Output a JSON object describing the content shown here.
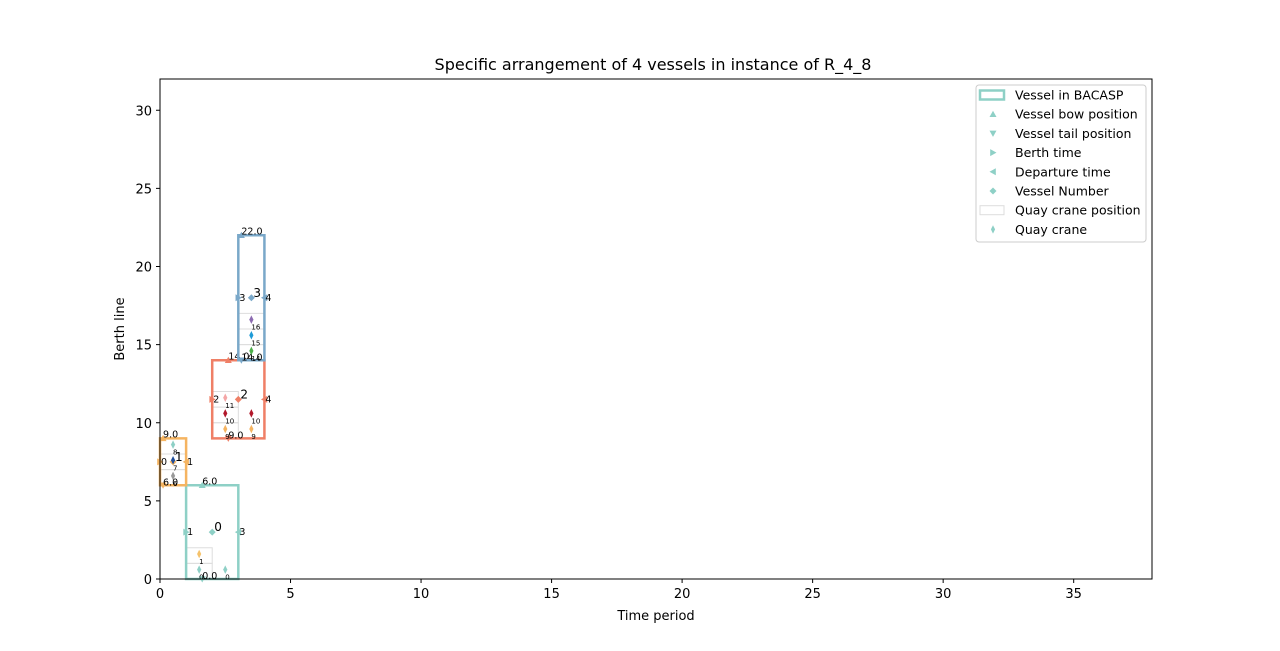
{
  "chart_data": {
    "type": "scatter",
    "title": "Specific arrangement of 4 vessels in instance of R_4_8",
    "xlabel": "Time period",
    "ylabel": "Berth line",
    "xlim": [
      0,
      38
    ],
    "ylim": [
      0,
      32
    ],
    "xticks": [
      "0",
      "5",
      "10",
      "15",
      "20",
      "25",
      "30",
      "35"
    ],
    "yticks": [
      "0",
      "5",
      "10",
      "15",
      "20",
      "25",
      "30"
    ],
    "grid": false,
    "legend_position": "top-right",
    "legend": [
      {
        "label": "Vessel in BACASP",
        "marker": "rect"
      },
      {
        "label": "Vessel bow position",
        "marker": "tri-up"
      },
      {
        "label": "Vessel tail position",
        "marker": "tri-down"
      },
      {
        "label": "Berth time",
        "marker": "tri-right"
      },
      {
        "label": "Departure time",
        "marker": "tri-left"
      },
      {
        "label": "Vessel Number",
        "marker": "diamond"
      },
      {
        "label": "Quay crane position",
        "marker": "crane-rect"
      },
      {
        "label": "Quay crane",
        "marker": "thin-diamond"
      }
    ],
    "legend_color": "#8ed0c6",
    "vessels": [
      {
        "id": "0",
        "berth_time": 1,
        "departure_time": 3,
        "tail": 0,
        "bow": 6,
        "color": "#8ed0c6",
        "tail_label": "0.0",
        "bow_label": "6.0",
        "berth_label": "1",
        "depart_label": "3",
        "crane_slots": [
          {
            "t": 1,
            "y0": 0,
            "y1": 1
          },
          {
            "t": 1,
            "y0": 1,
            "y1": 2
          }
        ],
        "cranes": [
          {
            "t": 1.5,
            "y": 0.6,
            "label": "0",
            "color": "#8ed0c6"
          },
          {
            "t": 1.5,
            "y": 1.6,
            "label": "1",
            "color": "#f5c26b"
          },
          {
            "t": 2.5,
            "y": 0.6,
            "label": "0",
            "color": "#8ed0c6"
          }
        ]
      },
      {
        "id": "1",
        "berth_time": 0,
        "departure_time": 1,
        "tail": 6,
        "bow": 9,
        "color": "#f5b461",
        "tail_label": "6.0",
        "bow_label": "9.0",
        "berth_label": "0",
        "depart_label": "1",
        "crane_slots": [
          {
            "t": 0,
            "y0": 6,
            "y1": 7
          },
          {
            "t": 0,
            "y0": 7,
            "y1": 8
          },
          {
            "t": 0,
            "y0": 8,
            "y1": 9
          }
        ],
        "cranes": [
          {
            "t": 0.5,
            "y": 6.6,
            "label": "6",
            "color": "#999999"
          },
          {
            "t": 0.5,
            "y": 7.6,
            "label": "7",
            "color": "#1f4e9c"
          },
          {
            "t": 0.5,
            "y": 8.6,
            "label": "8",
            "color": "#8ed0c6"
          }
        ]
      },
      {
        "id": "2",
        "berth_time": 2,
        "departure_time": 4,
        "tail": 9,
        "bow": 14,
        "color": "#ef7f66",
        "tail_label": "9.0",
        "bow_label": "14.0",
        "berth_label": "2",
        "depart_label": "4",
        "crane_slots": [
          {
            "t": 2,
            "y0": 9,
            "y1": 10
          },
          {
            "t": 2,
            "y0": 10,
            "y1": 11
          },
          {
            "t": 2,
            "y0": 11,
            "y1": 12
          }
        ],
        "cranes": [
          {
            "t": 2.5,
            "y": 9.6,
            "label": "9",
            "color": "#f5b461"
          },
          {
            "t": 2.5,
            "y": 10.6,
            "label": "10",
            "color": "#b2182b"
          },
          {
            "t": 2.5,
            "y": 11.6,
            "label": "11",
            "color": "#f4a6a6"
          },
          {
            "t": 3.5,
            "y": 9.6,
            "label": "9",
            "color": "#f5b461"
          },
          {
            "t": 3.5,
            "y": 10.6,
            "label": "10",
            "color": "#b2182b"
          }
        ]
      },
      {
        "id": "3",
        "berth_time": 3,
        "departure_time": 4,
        "tail": 14,
        "bow": 22,
        "color": "#7aa8c9",
        "tail_label": "14.0",
        "bow_label": "22.0",
        "berth_label": "3",
        "depart_label": "4",
        "crane_slots": [
          {
            "t": 3,
            "y0": 14,
            "y1": 15
          },
          {
            "t": 3,
            "y0": 15,
            "y1": 16
          },
          {
            "t": 3,
            "y0": 16,
            "y1": 17
          }
        ],
        "cranes": [
          {
            "t": 3.5,
            "y": 14.6,
            "label": "14",
            "color": "#4daf4a"
          },
          {
            "t": 3.5,
            "y": 15.6,
            "label": "15",
            "color": "#1f9bd7"
          },
          {
            "t": 3.5,
            "y": 16.6,
            "label": "16",
            "color": "#8c6bb1"
          }
        ]
      }
    ]
  }
}
